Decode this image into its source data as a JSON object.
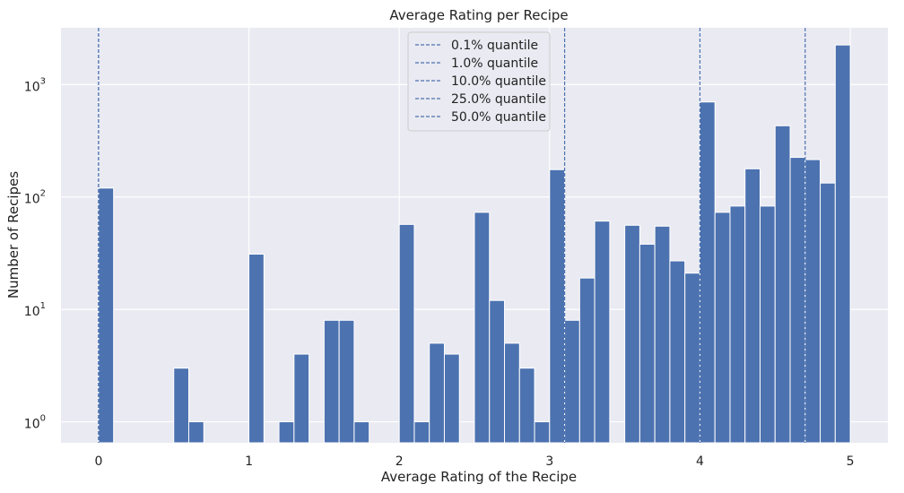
{
  "chart_data": {
    "type": "bar",
    "title": "Average Rating per Recipe",
    "xlabel": "Average Rating of the Recipe",
    "ylabel": "Number of Recipes",
    "xlim": [
      -0.25,
      5.25
    ],
    "y_scale": "log",
    "ylim": [
      0.65,
      3200
    ],
    "x_ticks": [
      0,
      1,
      2,
      3,
      4,
      5
    ],
    "y_ticks": [
      {
        "base": "10",
        "exp": "0",
        "value": 1
      },
      {
        "base": "10",
        "exp": "1",
        "value": 10
      },
      {
        "base": "10",
        "exp": "2",
        "value": 100
      },
      {
        "base": "10",
        "exp": "3",
        "value": 1000
      }
    ],
    "grid": true,
    "background": "#eaeaf2",
    "bar_color": "#4c72b0",
    "bin_width": 0.1,
    "bins": [
      {
        "x0": 0.0,
        "count": 120
      },
      {
        "x0": 0.5,
        "count": 3
      },
      {
        "x0": 0.6,
        "count": 1
      },
      {
        "x0": 1.0,
        "count": 31
      },
      {
        "x0": 1.2,
        "count": 1
      },
      {
        "x0": 1.3,
        "count": 4
      },
      {
        "x0": 1.5,
        "count": 8
      },
      {
        "x0": 1.6,
        "count": 8
      },
      {
        "x0": 1.7,
        "count": 1
      },
      {
        "x0": 2.0,
        "count": 57
      },
      {
        "x0": 2.1,
        "count": 1
      },
      {
        "x0": 2.2,
        "count": 5
      },
      {
        "x0": 2.3,
        "count": 4
      },
      {
        "x0": 2.5,
        "count": 73
      },
      {
        "x0": 2.6,
        "count": 12
      },
      {
        "x0": 2.7,
        "count": 5
      },
      {
        "x0": 2.8,
        "count": 3
      },
      {
        "x0": 2.9,
        "count": 1
      },
      {
        "x0": 3.0,
        "count": 175
      },
      {
        "x0": 3.1,
        "count": 8
      },
      {
        "x0": 3.2,
        "count": 19
      },
      {
        "x0": 3.3,
        "count": 61
      },
      {
        "x0": 3.5,
        "count": 56
      },
      {
        "x0": 3.6,
        "count": 38
      },
      {
        "x0": 3.7,
        "count": 55
      },
      {
        "x0": 3.8,
        "count": 27
      },
      {
        "x0": 3.9,
        "count": 21
      },
      {
        "x0": 4.0,
        "count": 700
      },
      {
        "x0": 4.1,
        "count": 73
      },
      {
        "x0": 4.2,
        "count": 83
      },
      {
        "x0": 4.3,
        "count": 178
      },
      {
        "x0": 4.4,
        "count": 83
      },
      {
        "x0": 4.5,
        "count": 430
      },
      {
        "x0": 4.6,
        "count": 225
      },
      {
        "x0": 4.7,
        "count": 215
      },
      {
        "x0": 4.8,
        "count": 133
      },
      {
        "x0": 4.9,
        "count": 2250
      }
    ],
    "quantile_lines": [
      {
        "label": "0.1% quantile",
        "x": 0.0
      },
      {
        "label": "1.0% quantile",
        "x": 0.0
      },
      {
        "label": "10.0% quantile",
        "x": 3.1
      },
      {
        "label": "25.0% quantile",
        "x": 4.0
      },
      {
        "label": "50.0% quantile",
        "x": 4.7
      }
    ],
    "legend_position": "top-center"
  }
}
